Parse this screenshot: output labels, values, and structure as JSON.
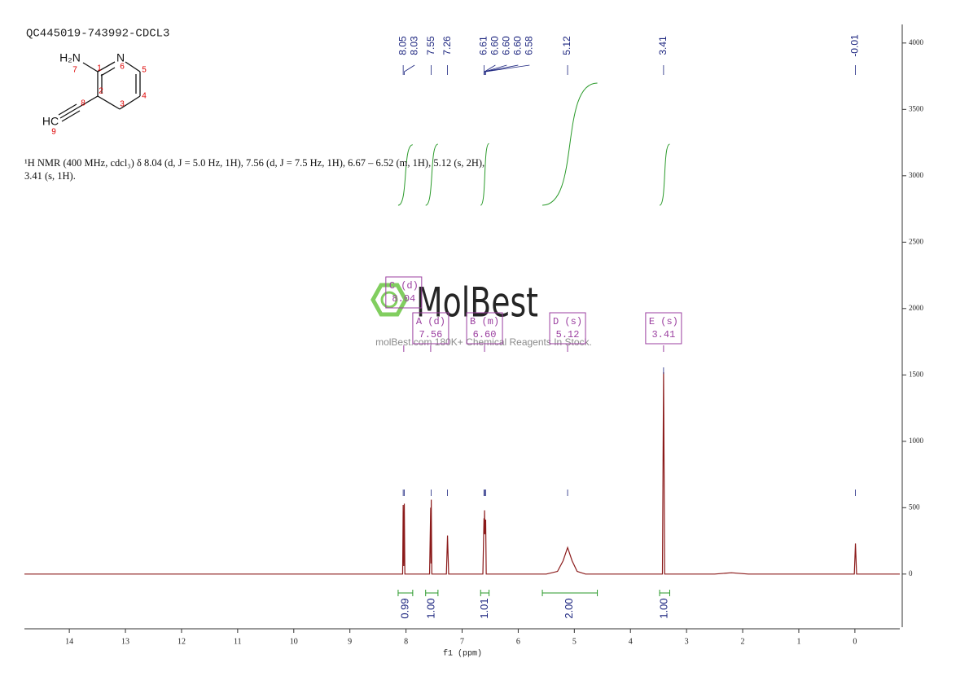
{
  "header": {
    "title": "QC445019-743992-CDCL3",
    "description": "¹H NMR (400 MHz, cdcl₃) δ 8.04 (d, J = 5.0 Hz, 1H), 7.56 (d, J = 7.5 Hz, 1H), 6.67 – 6.52 (m, 1H), 5.12 (s, 2H), 3.41 (s, 1H)."
  },
  "molecule": {
    "labels": [
      "H₂N",
      "N",
      "HC"
    ],
    "numbers": [
      "7",
      "1",
      "6",
      "5",
      "4",
      "3",
      "2",
      "8",
      "9"
    ]
  },
  "watermark": {
    "brand": "MolBest",
    "tagline": "molBest.com 180K+ Chemical Reagents In Stock."
  },
  "chart_data": {
    "type": "line",
    "color": "#8b1a1a",
    "x_label": "f1 (ppm)",
    "x": [
      14.8,
      8.1,
      8.06,
      8.05,
      8.04,
      8.03,
      8.02,
      7.58,
      7.56,
      7.555,
      7.55,
      7.54,
      7.28,
      7.26,
      7.24,
      6.63,
      6.61,
      6.605,
      6.6,
      6.595,
      6.58,
      6.57,
      5.5,
      5.3,
      5.2,
      5.12,
      5.04,
      4.95,
      4.8,
      3.43,
      3.41,
      3.39,
      2.5,
      2.2,
      1.9,
      0.01,
      -0.01,
      -0.03,
      -0.8
    ],
    "values": [
      0,
      0,
      0,
      520,
      60,
      530,
      0,
      0,
      500,
      80,
      560,
      0,
      0,
      290,
      0,
      0,
      420,
      300,
      480,
      300,
      410,
      0,
      0,
      20,
      100,
      200,
      100,
      20,
      0,
      0,
      1520,
      0,
      0,
      10,
      0,
      0,
      230,
      0,
      0
    ],
    "xlim": [
      14.8,
      -0.8
    ],
    "xticks": [
      14,
      13,
      12,
      11,
      10,
      9,
      8,
      7,
      6,
      5,
      4,
      3,
      2,
      1,
      0
    ],
    "ylim": [
      -400,
      4140
    ],
    "yticks": [
      0,
      500,
      1000,
      1500,
      2000,
      2500,
      3000,
      3500,
      4000
    ],
    "peak_labels": [
      8.05,
      8.03,
      7.55,
      7.26,
      6.61,
      {
        "value": 6.6,
        "label": "6.60"
      },
      {
        "value": 6.6,
        "label": "6.60"
      },
      {
        "value": 6.6,
        "label": "6.60"
      },
      6.58,
      5.12,
      3.41,
      -0.01
    ],
    "integrals": {
      "ranges": [
        [
          8.14,
          7.88
        ],
        [
          7.65,
          7.43
        ],
        [
          6.67,
          6.52
        ],
        [
          5.57,
          4.59
        ],
        [
          3.48,
          3.3
        ]
      ],
      "values": [
        0.99,
        1,
        1.01,
        2,
        1
      ],
      "value_labels": [
        "0.99",
        "1.00",
        "1.01",
        "2.00",
        "1.00"
      ]
    },
    "multiplets": [
      {
        "label": "C (d)",
        "shift": 8.04
      },
      {
        "label": "A (d)",
        "shift": 7.56
      },
      {
        "label": "B (m)",
        "shift": {
          "value": 6.6,
          "label": "6.60"
        }
      },
      {
        "label": "D (s)",
        "shift": 5.12
      },
      {
        "label": "E (s)",
        "shift": 3.41
      }
    ]
  }
}
